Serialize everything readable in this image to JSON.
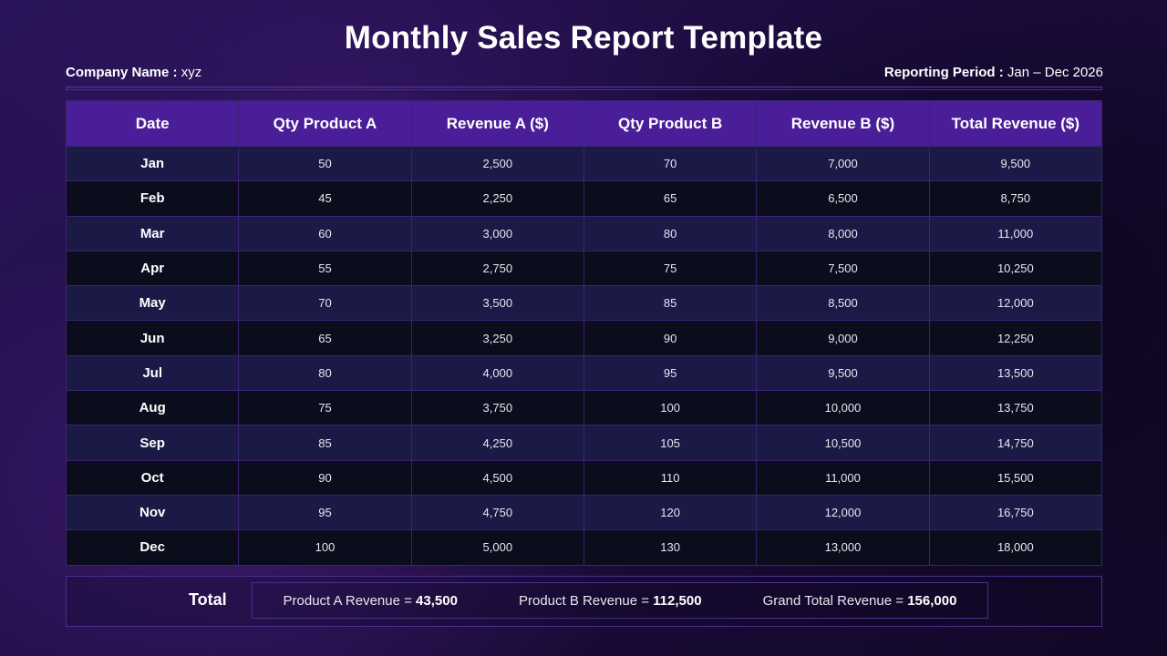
{
  "title": "Monthly Sales Report Template",
  "company": {
    "label": "Company Name :",
    "value": "xyz"
  },
  "period": {
    "label": "Reporting Period :",
    "value": "Jan – Dec 2026"
  },
  "table": {
    "headers": [
      "Date",
      "Qty Product A",
      "Revenue A ($)",
      "Qty Product B",
      "Revenue B ($)",
      "Total Revenue ($)"
    ],
    "rows": [
      [
        "Jan",
        "50",
        "2,500",
        "70",
        "7,000",
        "9,500"
      ],
      [
        "Feb",
        "45",
        "2,250",
        "65",
        "6,500",
        "8,750"
      ],
      [
        "Mar",
        "60",
        "3,000",
        "80",
        "8,000",
        "11,000"
      ],
      [
        "Apr",
        "55",
        "2,750",
        "75",
        "7,500",
        "10,250"
      ],
      [
        "May",
        "70",
        "3,500",
        "85",
        "8,500",
        "12,000"
      ],
      [
        "Jun",
        "65",
        "3,250",
        "90",
        "9,000",
        "12,250"
      ],
      [
        "Jul",
        "80",
        "4,000",
        "95",
        "9,500",
        "13,500"
      ],
      [
        "Aug",
        "75",
        "3,750",
        "100",
        "10,000",
        "13,750"
      ],
      [
        "Sep",
        "85",
        "4,250",
        "105",
        "10,500",
        "14,750"
      ],
      [
        "Oct",
        "90",
        "4,500",
        "110",
        "11,000",
        "15,500"
      ],
      [
        "Nov",
        "95",
        "4,750",
        "120",
        "12,000",
        "16,750"
      ],
      [
        "Dec",
        "100",
        "5,000",
        "130",
        "13,000",
        "18,000"
      ]
    ]
  },
  "totals": {
    "label": "Total",
    "product_a": {
      "label": "Product A Revenue = ",
      "value": "43,500"
    },
    "product_b": {
      "label": "Product B Revenue = ",
      "value": "112,500"
    },
    "grand": {
      "label": "Grand Total Revenue = ",
      "value": "156,000"
    }
  },
  "colors": {
    "header_bg": "#4a1e98",
    "row_light": "#1b1a46",
    "row_dark": "#0c0d1c",
    "border": "#3a2372"
  }
}
